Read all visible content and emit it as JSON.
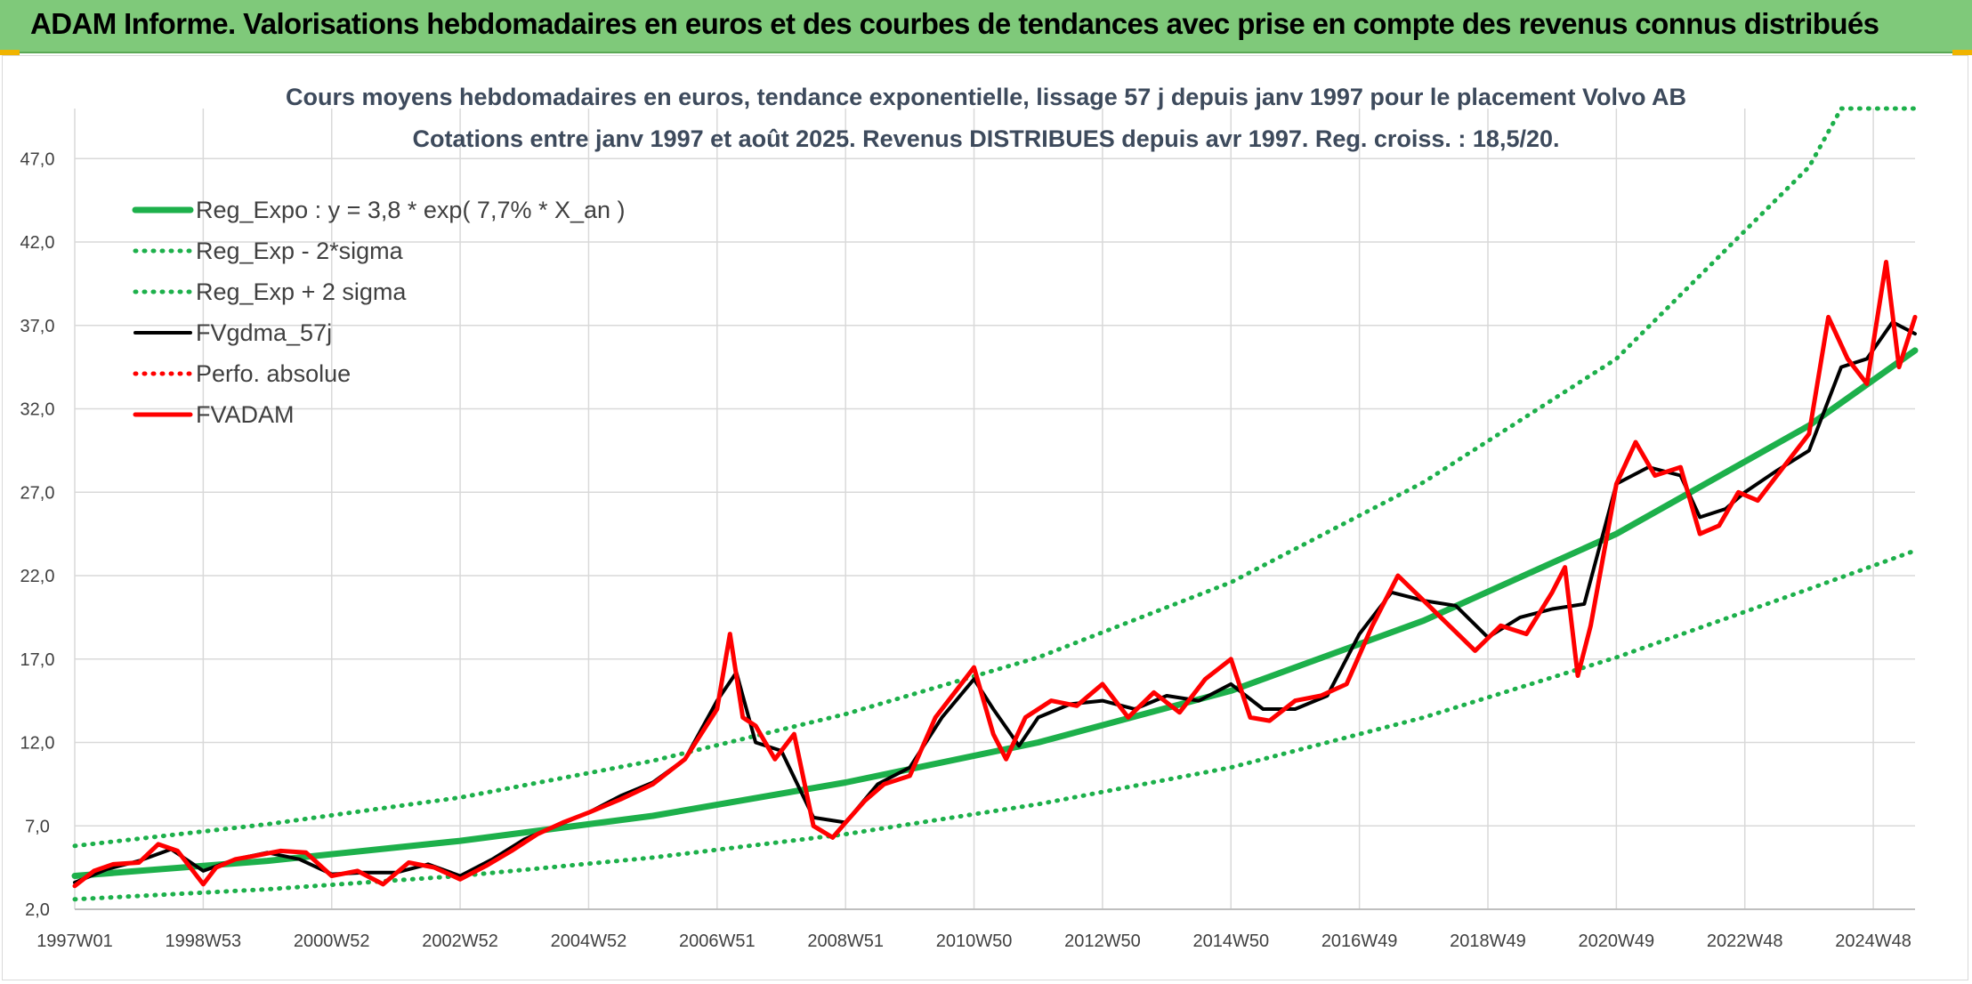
{
  "header": {
    "title": "ADAM Informe. Valorisations hebdomadaires en euros et des courbes de tendances avec prise en compte des revenus connus distribués"
  },
  "colors": {
    "banner": "#7fc97a",
    "green": "#1db04b",
    "black": "#000000",
    "red": "#ff0000",
    "grid": "#d9d9d9"
  },
  "chart_data": {
    "type": "line",
    "title": "Cours moyens hebdomadaires en euros, tendance exponentielle, lissage 57 j depuis janv 1997 pour le placement Volvo AB",
    "subtitle": "Cotations entre janv 1997 et août 2025. Revenus DISTRIBUES depuis avr 1997. Reg. croiss. : 18,5/20.",
    "xlabel": "",
    "ylabel": "",
    "ylim": [
      2.0,
      50.0
    ],
    "yticks": [
      "2,0",
      "7,0",
      "12,0",
      "17,0",
      "22,0",
      "27,0",
      "32,0",
      "37,0",
      "42,0",
      "47,0"
    ],
    "xlim": [
      1997.0,
      2025.65
    ],
    "xticks": [
      {
        "label": "1997W01",
        "x": 1997.0
      },
      {
        "label": "1998W53",
        "x": 1999.0
      },
      {
        "label": "2000W52",
        "x": 2001.0
      },
      {
        "label": "2002W52",
        "x": 2003.0
      },
      {
        "label": "2004W52",
        "x": 2005.0
      },
      {
        "label": "2006W51",
        "x": 2007.0
      },
      {
        "label": "2008W51",
        "x": 2009.0
      },
      {
        "label": "2010W50",
        "x": 2011.0
      },
      {
        "label": "2012W50",
        "x": 2013.0
      },
      {
        "label": "2014W50",
        "x": 2015.0
      },
      {
        "label": "2016W49",
        "x": 2017.0
      },
      {
        "label": "2018W49",
        "x": 2019.0
      },
      {
        "label": "2020W49",
        "x": 2021.0
      },
      {
        "label": "2022W48",
        "x": 2023.0
      },
      {
        "label": "2024W48",
        "x": 2025.0
      }
    ],
    "grid": true,
    "legend_position": "top-left",
    "series": [
      {
        "name": "Reg_Expo : y = 3,8 * exp( 7,7% *  X_an )",
        "color": "#1db04b",
        "style": "solid",
        "x": [
          1997.0,
          2000.0,
          2003.0,
          2006.0,
          2009.0,
          2012.0,
          2015.0,
          2018.0,
          2021.0,
          2024.0,
          2025.65
        ],
        "values": [
          4.0,
          4.9,
          6.1,
          7.6,
          9.6,
          12.0,
          15.1,
          19.3,
          24.5,
          31.0,
          35.5
        ]
      },
      {
        "name": "Reg_Exp - 2*sigma",
        "color": "#1db04b",
        "style": "dotted",
        "x": [
          1997.0,
          2000.0,
          2003.0,
          2006.0,
          2009.0,
          2012.0,
          2015.0,
          2018.0,
          2021.0,
          2024.0,
          2025.65
        ],
        "values": [
          2.6,
          3.2,
          4.0,
          5.1,
          6.5,
          8.3,
          10.5,
          13.5,
          17.1,
          21.2,
          23.5
        ]
      },
      {
        "name": "Reg_Exp + 2 sigma",
        "color": "#1db04b",
        "style": "dotted",
        "x": [
          1997.0,
          2000.0,
          2003.0,
          2006.0,
          2009.0,
          2012.0,
          2015.0,
          2018.0,
          2021.0,
          2024.0,
          2024.5,
          2025.65
        ],
        "values": [
          5.8,
          7.1,
          8.7,
          10.9,
          13.7,
          17.1,
          21.6,
          27.6,
          35.0,
          46.5,
          50.0,
          50.0
        ]
      },
      {
        "name": "FVgdma_57j",
        "color": "#000000",
        "style": "solid",
        "x": [
          1997.0,
          1997.5,
          1998.0,
          1998.5,
          1999.0,
          1999.5,
          2000.0,
          2000.5,
          2001.0,
          2001.5,
          2002.0,
          2002.5,
          2003.0,
          2003.5,
          2004.0,
          2004.5,
          2005.0,
          2005.5,
          2006.0,
          2006.5,
          2007.0,
          2007.3,
          2007.6,
          2008.0,
          2008.5,
          2009.0,
          2009.5,
          2010.0,
          2010.5,
          2011.0,
          2011.3,
          2011.7,
          2012.0,
          2012.5,
          2013.0,
          2013.5,
          2014.0,
          2014.5,
          2015.0,
          2015.5,
          2016.0,
          2016.5,
          2017.0,
          2017.5,
          2018.0,
          2018.5,
          2019.0,
          2019.5,
          2020.0,
          2020.5,
          2021.0,
          2021.5,
          2022.0,
          2022.3,
          2022.7,
          2023.0,
          2023.5,
          2024.0,
          2024.5,
          2024.9,
          2025.3,
          2025.65
        ],
        "values": [
          3.6,
          4.4,
          4.9,
          5.6,
          4.3,
          5.0,
          5.4,
          5.0,
          4.1,
          4.2,
          4.2,
          4.7,
          4.0,
          5.0,
          6.2,
          7.0,
          7.8,
          8.8,
          9.6,
          11.0,
          14.5,
          16.2,
          12.0,
          11.5,
          7.5,
          7.2,
          9.5,
          10.5,
          13.5,
          15.8,
          14.0,
          11.8,
          13.5,
          14.3,
          14.5,
          14.0,
          14.8,
          14.5,
          15.5,
          14.0,
          14.0,
          14.8,
          18.5,
          21.0,
          20.5,
          20.2,
          18.3,
          19.5,
          20.0,
          20.3,
          27.5,
          28.5,
          28.0,
          25.5,
          26.0,
          27.0,
          28.3,
          29.5,
          34.5,
          35.0,
          37.2,
          36.5
        ]
      },
      {
        "name": "Perfo. absolue",
        "color": "#ff0000",
        "style": "dotted",
        "x": [],
        "values": []
      },
      {
        "name": "FVADAM",
        "color": "#ff0000",
        "style": "solid",
        "x": [
          1997.0,
          1997.3,
          1997.6,
          1998.0,
          1998.3,
          1998.6,
          1999.0,
          1999.2,
          1999.5,
          1999.8,
          2000.2,
          2000.6,
          2001.0,
          2001.4,
          2001.8,
          2002.2,
          2002.6,
          2003.0,
          2003.4,
          2003.8,
          2004.2,
          2004.6,
          2005.0,
          2005.5,
          2006.0,
          2006.5,
          2007.0,
          2007.2,
          2007.4,
          2007.6,
          2007.9,
          2008.2,
          2008.5,
          2008.8,
          2009.0,
          2009.3,
          2009.6,
          2010.0,
          2010.4,
          2010.8,
          2011.0,
          2011.3,
          2011.5,
          2011.8,
          2012.2,
          2012.6,
          2013.0,
          2013.4,
          2013.8,
          2014.2,
          2014.6,
          2015.0,
          2015.3,
          2015.6,
          2016.0,
          2016.4,
          2016.8,
          2017.2,
          2017.6,
          2018.0,
          2018.4,
          2018.8,
          2019.2,
          2019.6,
          2020.0,
          2020.2,
          2020.4,
          2020.6,
          2021.0,
          2021.3,
          2021.6,
          2022.0,
          2022.3,
          2022.6,
          2022.9,
          2023.2,
          2023.6,
          2024.0,
          2024.3,
          2024.6,
          2024.9,
          2025.2,
          2025.4,
          2025.65
        ],
        "values": [
          3.4,
          4.3,
          4.7,
          4.8,
          5.9,
          5.5,
          3.5,
          4.5,
          5.0,
          5.2,
          5.5,
          5.4,
          4.0,
          4.3,
          3.5,
          4.8,
          4.5,
          3.8,
          4.6,
          5.5,
          6.5,
          7.2,
          7.8,
          8.6,
          9.5,
          11.0,
          14.0,
          18.5,
          13.5,
          13.0,
          11.0,
          12.5,
          7.0,
          6.3,
          7.2,
          8.5,
          9.5,
          10.0,
          13.5,
          15.5,
          16.5,
          12.5,
          11.0,
          13.5,
          14.5,
          14.2,
          15.5,
          13.5,
          15.0,
          13.8,
          15.8,
          17.0,
          13.5,
          13.3,
          14.5,
          14.8,
          15.5,
          19.0,
          22.0,
          20.5,
          19.0,
          17.5,
          19.0,
          18.5,
          21.0,
          22.5,
          16.0,
          19.0,
          27.5,
          30.0,
          28.0,
          28.5,
          24.5,
          25.0,
          27.0,
          26.5,
          28.5,
          30.5,
          37.5,
          35.0,
          33.5,
          40.8,
          34.5,
          37.5
        ]
      }
    ]
  }
}
